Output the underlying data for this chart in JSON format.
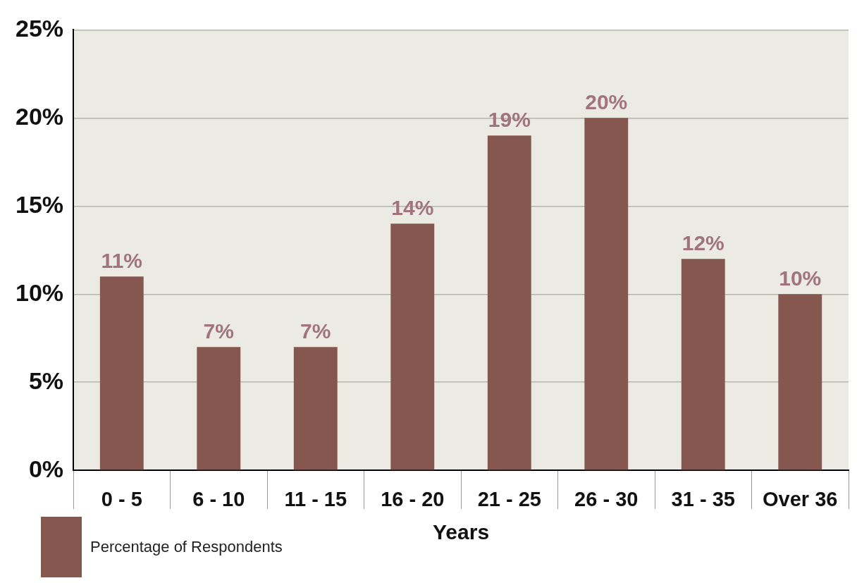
{
  "chart_data": {
    "type": "bar",
    "xlabel": "Years",
    "categories": [
      "0 - 5",
      "6 - 10",
      "11 - 15",
      "16 - 20",
      "21 - 25",
      "26 - 30",
      "31 - 35",
      "Over 36"
    ],
    "series": [
      {
        "name": "Percentage of Respondents",
        "color": "#86574f",
        "values": [
          11,
          7,
          7,
          14,
          19,
          20,
          12,
          10
        ],
        "value_labels": [
          "11%",
          "7%",
          "7%",
          "14%",
          "19%",
          "20%",
          "12%",
          "10%"
        ]
      }
    ],
    "ylim": [
      0,
      25
    ],
    "yticks": [
      {
        "value": 0,
        "label": "0%"
      },
      {
        "value": 5,
        "label": "5%"
      },
      {
        "value": 10,
        "label": "10%"
      },
      {
        "value": 15,
        "label": "15%"
      },
      {
        "value": 20,
        "label": "20%"
      },
      {
        "value": 25,
        "label": "25%"
      }
    ],
    "grid": "y",
    "legend": "bottom left"
  }
}
